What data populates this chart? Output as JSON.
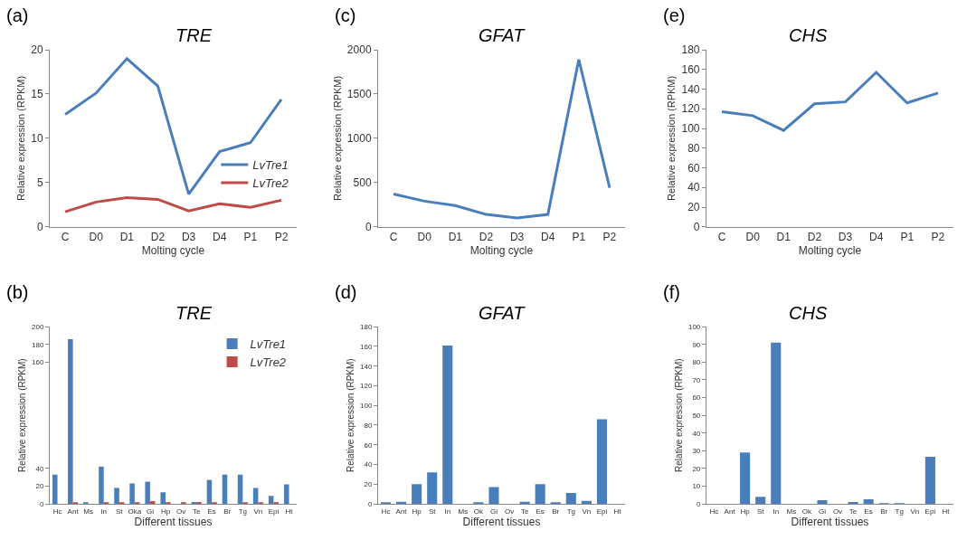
{
  "chart_data": [
    {
      "type": "line",
      "title": "TRE",
      "xlabel": "Molting cycle",
      "ylabel": "Relative expression (RPKM)",
      "annotations": [
        "(a)"
      ],
      "categories": [
        "C",
        "D0",
        "D1",
        "D2",
        "D3",
        "D4",
        "P1",
        "P2"
      ],
      "series": [
        {
          "name": "LvTre1",
          "color": "#4a7ebb",
          "values": [
            12.7,
            15.1,
            19.0,
            15.9,
            3.7,
            8.5,
            9.5,
            14.4
          ]
        },
        {
          "name": "LvTre2",
          "color": "#be4b48",
          "values": [
            1.7,
            2.8,
            3.3,
            3.1,
            1.8,
            2.6,
            2.2,
            3.0
          ]
        }
      ],
      "ylim": [
        0,
        20
      ],
      "yticks": [
        0,
        5,
        10,
        15,
        20
      ],
      "legend": "right",
      "marker": "none",
      "line_style": "solid"
    },
    {
      "type": "line",
      "title": "GFAT",
      "xlabel": "Molting cycle",
      "ylabel": "Relative expression (RPKM)",
      "annotations": [
        "(c)"
      ],
      "categories": [
        "C",
        "D0",
        "D1",
        "D2",
        "D3",
        "D4",
        "P1",
        "P2"
      ],
      "series": [
        {
          "color": "#4a7ebb",
          "values": [
            370,
            290,
            240,
            140,
            100,
            140,
            1890,
            440
          ]
        }
      ],
      "ylim": [
        0,
        2000
      ],
      "yticks": [
        0,
        500,
        1000,
        1500,
        2000
      ],
      "marker": "none",
      "line_style": "solid"
    },
    {
      "type": "line",
      "title": "CHS",
      "xlabel": "Molting cycle",
      "ylabel": "Relative expression (RPKM)",
      "annotations": [
        "(e)"
      ],
      "categories": [
        "C",
        "D0",
        "D1",
        "D2",
        "D3",
        "D4",
        "P1",
        "P2"
      ],
      "series": [
        {
          "color": "#4a7ebb",
          "values": [
            117,
            113,
            98,
            125,
            127,
            157,
            126,
            136
          ]
        }
      ],
      "ylim": [
        0,
        180
      ],
      "yticks": [
        0,
        20,
        40,
        60,
        80,
        100,
        120,
        140,
        160,
        180
      ],
      "marker": "none",
      "line_style": "solid"
    },
    {
      "type": "bar",
      "title": "TRE",
      "xlabel": "Different tissues",
      "ylabel": "Relative expression (RPKM)",
      "annotations": [
        "(b)"
      ],
      "categories": [
        "Hc",
        "Ant",
        "Ms",
        "In",
        "St",
        "Oka",
        "Gi",
        "Hp",
        "Ov",
        "Te",
        "Es",
        "Br",
        "Tg",
        "Vn",
        "Epi",
        "Ht"
      ],
      "series": [
        {
          "name": "LvTre1",
          "color": "#4a7ebb",
          "values": [
            33,
            186,
            1,
            42,
            18,
            23,
            25,
            13,
            0,
            2,
            27,
            33,
            33,
            18,
            9,
            22
          ]
        },
        {
          "name": "LvTre2",
          "color": "#be4b48",
          "values": [
            0,
            1,
            0,
            1,
            1,
            1,
            3,
            1,
            1,
            2,
            1,
            0,
            1,
            1,
            1,
            0
          ]
        }
      ],
      "ylim": [
        0,
        200
      ],
      "yticks": [
        0,
        20,
        40,
        160,
        180,
        200
      ],
      "legend": "top right"
    },
    {
      "type": "bar",
      "title": "GFAT",
      "xlabel": "Different tissues",
      "ylabel": "Relative expression (RPKM)",
      "annotations": [
        "(d)"
      ],
      "categories": [
        "Hc",
        "Ant",
        "Hp",
        "St",
        "In",
        "Ms",
        "Ok",
        "Gi",
        "Ov",
        "Te",
        "Es",
        "Br",
        "Tg",
        "Vn",
        "Epi",
        "Ht"
      ],
      "series": [
        {
          "color": "#4a7ebb",
          "values": [
            1,
            2,
            20,
            32,
            161,
            0,
            1,
            17,
            0,
            2,
            20,
            1,
            11,
            3,
            86,
            0
          ]
        }
      ],
      "ylim": [
        0,
        180
      ],
      "yticks": [
        0,
        20,
        40,
        60,
        80,
        100,
        120,
        140,
        160,
        180
      ]
    },
    {
      "type": "bar",
      "title": "CHS",
      "xlabel": "Different tissues",
      "ylabel": "Relative expression (RPKM)",
      "annotations": [
        "(f)"
      ],
      "categories": [
        "Hc",
        "Ant",
        "Hp",
        "St",
        "In",
        "Ms",
        "Ok",
        "Gi",
        "Ov",
        "Te",
        "Es",
        "Br",
        "Tg",
        "Vn",
        "Epi",
        "Ht"
      ],
      "series": [
        {
          "color": "#4a7ebb",
          "values": [
            0,
            0,
            29,
            4,
            91,
            0,
            0,
            2,
            0,
            1,
            2.5,
            0.3,
            0.3,
            0,
            26.5,
            0
          ]
        }
      ],
      "ylim": [
        0,
        100
      ],
      "yticks": [
        0,
        10,
        20,
        30,
        40,
        50,
        60,
        70,
        80,
        90,
        100
      ]
    }
  ]
}
